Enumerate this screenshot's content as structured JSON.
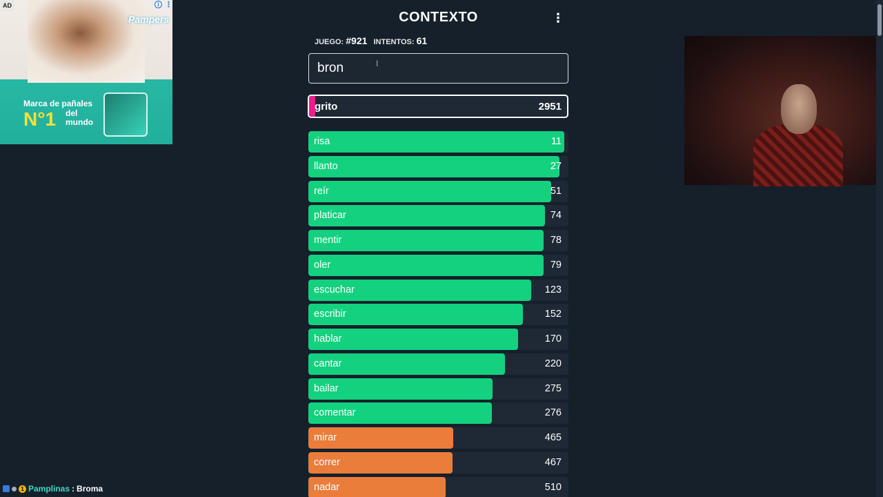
{
  "ad": {
    "tag": "AD",
    "brand": "Pampers",
    "headline": "Marca de pañales",
    "number": "N°1",
    "number_sub": "del mundo"
  },
  "game": {
    "title": "CONTEXTO",
    "game_label": "JUEGO:",
    "game_number": "#921",
    "attempts_label": "INTENTOS:",
    "attempts": "61",
    "input_value": "bron",
    "current_guess": {
      "word": "grito",
      "rank": "2951",
      "fill": 0.02,
      "color": "#e91e8c"
    },
    "guesses": [
      {
        "word": "risa",
        "rank": "11",
        "fill": 0.985,
        "color": "#14d17f"
      },
      {
        "word": "llanto",
        "rank": "27",
        "fill": 0.965,
        "color": "#14d17f"
      },
      {
        "word": "reír",
        "rank": "51",
        "fill": 0.935,
        "color": "#14d17f"
      },
      {
        "word": "platicar",
        "rank": "74",
        "fill": 0.91,
        "color": "#14d17f"
      },
      {
        "word": "mentir",
        "rank": "78",
        "fill": 0.905,
        "color": "#14d17f"
      },
      {
        "word": "oler",
        "rank": "79",
        "fill": 0.905,
        "color": "#14d17f"
      },
      {
        "word": "escuchar",
        "rank": "123",
        "fill": 0.857,
        "color": "#14d17f"
      },
      {
        "word": "escribir",
        "rank": "152",
        "fill": 0.826,
        "color": "#14d17f"
      },
      {
        "word": "hablar",
        "rank": "170",
        "fill": 0.806,
        "color": "#14d17f"
      },
      {
        "word": "cantar",
        "rank": "220",
        "fill": 0.756,
        "color": "#14d17f"
      },
      {
        "word": "bailar",
        "rank": "275",
        "fill": 0.708,
        "color": "#14d17f"
      },
      {
        "word": "comentar",
        "rank": "276",
        "fill": 0.706,
        "color": "#14d17f"
      },
      {
        "word": "mirar",
        "rank": "465",
        "fill": 0.557,
        "color": "#ea7d3a"
      },
      {
        "word": "correr",
        "rank": "467",
        "fill": 0.555,
        "color": "#ea7d3a"
      },
      {
        "word": "nadar",
        "rank": "510",
        "fill": 0.528,
        "color": "#ea7d3a"
      }
    ]
  },
  "chat": {
    "user": "Pamplinas",
    "separator": ":",
    "message": "Broma"
  }
}
